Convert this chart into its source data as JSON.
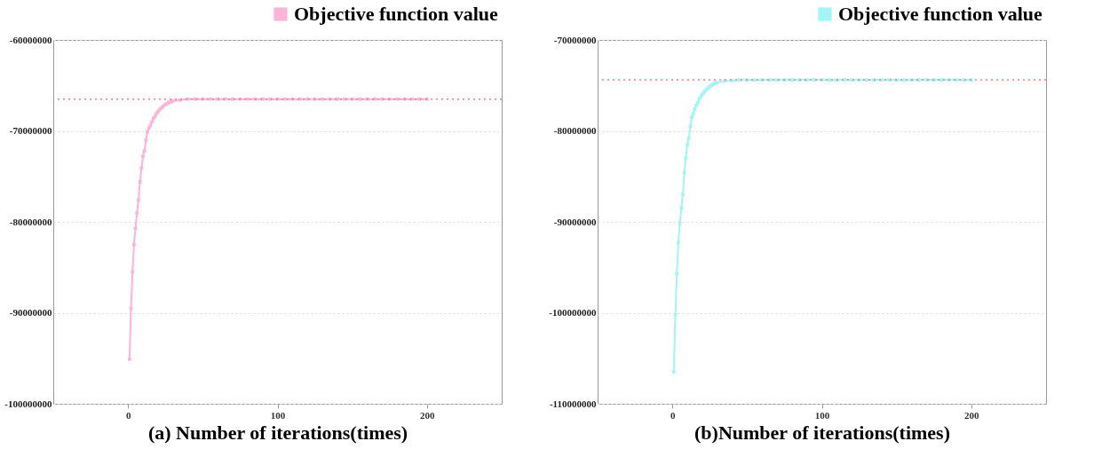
{
  "chart_data": [
    {
      "type": "line",
      "xlabel": "(a) Number of iterations(times)",
      "xlim": [
        -50,
        250
      ],
      "xticks": [
        0,
        100,
        200
      ],
      "ylim": [
        -100000000,
        -60000000
      ],
      "yticks": [
        -100000000,
        -90000000,
        -80000000,
        -70000000,
        -60000000
      ],
      "grid": "y",
      "legend": "top right",
      "marker": "square",
      "x": [
        1,
        2,
        3,
        4,
        5,
        6,
        7,
        8,
        9,
        10,
        11,
        12,
        13,
        14,
        15,
        16,
        17,
        18,
        19,
        20,
        21,
        22,
        23,
        24,
        25,
        26,
        27,
        28,
        29,
        30,
        35,
        40,
        45,
        50,
        55,
        60,
        65,
        70,
        75,
        80,
        85,
        90,
        95,
        100,
        105,
        110,
        115,
        120,
        125,
        130,
        135,
        140,
        145,
        150,
        155,
        160,
        165,
        170,
        175,
        180,
        185,
        190,
        195,
        200
      ],
      "series": [
        {
          "name": "Objective function value",
          "color": "#ffb3d9",
          "values": [
            -95100000,
            -89500000,
            -85500000,
            -82500000,
            -80700000,
            -79000000,
            -77600000,
            -75600000,
            -74100000,
            -72800000,
            -72200000,
            -71000000,
            -70100000,
            -69700000,
            -69400000,
            -69000000,
            -68600000,
            -68400000,
            -68100000,
            -67900000,
            -67700000,
            -67500000,
            -67400000,
            -67200000,
            -67100000,
            -67000000,
            -66900000,
            -66800000,
            -66800000,
            -66700000,
            -66600000,
            -66500000,
            -66500000,
            -66500000,
            -66500000,
            -66500000,
            -66500000,
            -66500000,
            -66500000,
            -66500000,
            -66500000,
            -66500000,
            -66500000,
            -66500000,
            -66500000,
            -66500000,
            -66500000,
            -66500000,
            -66500000,
            -66500000,
            -66500000,
            -66500000,
            -66500000,
            -66500000,
            -66500000,
            -66500000,
            -66500000,
            -66500000,
            -66500000,
            -66500000,
            -66500000,
            -66500000,
            -66500000,
            -66500000
          ]
        }
      ],
      "ref_lines": [
        {
          "axis": "y",
          "value": -66500000,
          "color": "#f08080",
          "line_style": "dotted"
        }
      ]
    },
    {
      "type": "line",
      "xlabel": "(b)Number of iterations(times)",
      "xlim": [
        -50,
        250
      ],
      "xticks": [
        0,
        100,
        200
      ],
      "ylim": [
        -110000000,
        -70000000
      ],
      "yticks": [
        -110000000,
        -100000000,
        -90000000,
        -80000000,
        -70000000
      ],
      "grid": "y",
      "legend": "top right",
      "marker": "square",
      "x": [
        1,
        2,
        3,
        4,
        5,
        6,
        7,
        8,
        9,
        10,
        11,
        12,
        13,
        14,
        15,
        16,
        17,
        18,
        19,
        20,
        21,
        22,
        23,
        24,
        25,
        26,
        27,
        28,
        29,
        30,
        35,
        40,
        45,
        50,
        55,
        60,
        65,
        70,
        75,
        80,
        85,
        90,
        95,
        100,
        105,
        110,
        115,
        120,
        125,
        130,
        135,
        140,
        145,
        150,
        155,
        160,
        165,
        170,
        175,
        180,
        185,
        190,
        195,
        200
      ],
      "series": [
        {
          "name": "Objective function value",
          "color": "#a0f5f5",
          "values": [
            -106500000,
            -100200000,
            -95700000,
            -92300000,
            -90200000,
            -88500000,
            -87000000,
            -84600000,
            -83000000,
            -81500000,
            -80800000,
            -79500000,
            -78500000,
            -78100000,
            -77600000,
            -77200000,
            -76900000,
            -76500000,
            -76200000,
            -76000000,
            -75800000,
            -75600000,
            -75400000,
            -75300000,
            -75100000,
            -75000000,
            -74900000,
            -74800000,
            -74700000,
            -74700000,
            -74500000,
            -74500000,
            -74400000,
            -74400000,
            -74400000,
            -74400000,
            -74400000,
            -74400000,
            -74400000,
            -74400000,
            -74400000,
            -74400000,
            -74400000,
            -74400000,
            -74400000,
            -74400000,
            -74400000,
            -74400000,
            -74400000,
            -74400000,
            -74400000,
            -74400000,
            -74400000,
            -74400000,
            -74400000,
            -74400000,
            -74400000,
            -74400000,
            -74400000,
            -74400000,
            -74400000,
            -74400000,
            -74400000,
            -74400000
          ]
        }
      ],
      "ref_lines": [
        {
          "axis": "y",
          "value": -74400000,
          "color": "#f08080",
          "line_style": "dotted"
        }
      ]
    }
  ]
}
